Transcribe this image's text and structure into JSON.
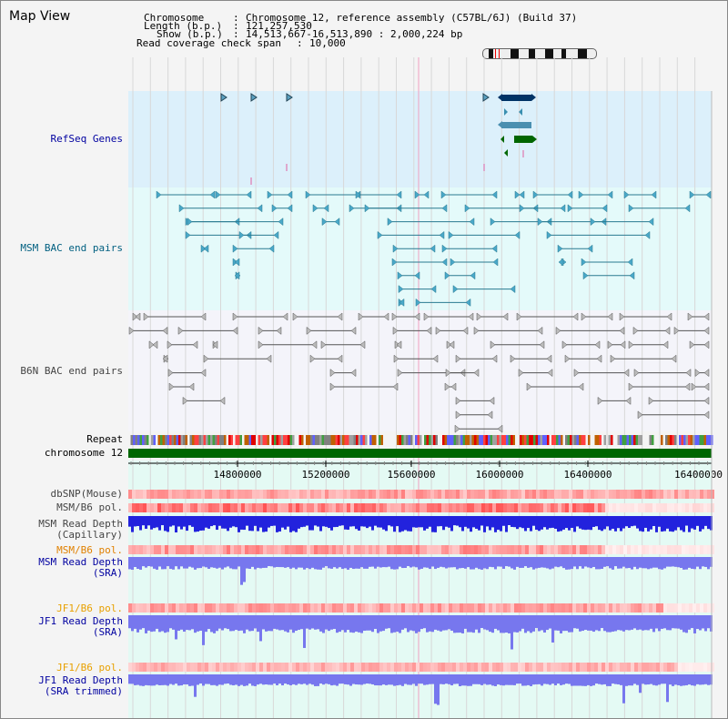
{
  "app": {
    "title": "Map View"
  },
  "header": {
    "chromosome_label": "Chromosome",
    "chromosome_value": "Chromosome 12, reference assembly (C57BL/6J) (Build 37)",
    "length_label": "Length (b.p.)",
    "length_value": "121,257,530",
    "show_label": "Show (b.p.)",
    "show_value": "14,513,667-16,513,890 : 2,000,224 bp",
    "coverage_label": "Read coverage check span",
    "coverage_value": "10,000"
  },
  "tracks": {
    "refseq": "RefSeq Genes",
    "msm_bac": "MSM BAC end pairs",
    "b6n_bac": "B6N BAC end pairs",
    "repeat": "Repeat",
    "chromosome": "chromosome 12",
    "dbsnp": "dbSNP(Mouse)",
    "msm_b6_pol_1": "MSM/B6 pol.",
    "msm_depth_cap": "MSM Read Depth\n(Capillary)",
    "msm_b6_pol_2": "MSM/B6 pol.",
    "msm_depth_sra": "MSM Read Depth\n(SRA)",
    "jf1_b6_pol_1": "JF1/B6 pol.",
    "jf1_depth_sra": "JF1 Read Depth\n(SRA)",
    "jf1_b6_pol_2": "JF1/B6 pol.",
    "jf1_depth_trim": "JF1 Read Depth\n(SRA trimmed)"
  },
  "axis": {
    "ticks": [
      "14800000",
      "15200000",
      "15600000",
      "16000000",
      "16400000"
    ]
  },
  "colors": {
    "refseq_bg": "#dcf0fb",
    "refseq_label": "#0000a0",
    "msm_bac_bg": "#e4fafa",
    "msm_bac_label": "#005f80",
    "msm_bac_feature": "#2a7a90",
    "b6n_bac_bg": "#f4f4fa",
    "b6n_bac_label": "#444444",
    "chromosome_bar": "#006600",
    "depth_blue": "#2222dd",
    "depth_light": "#7777ee",
    "pol_red": "#e82020",
    "msm_pol_label": "#e08000",
    "jf1_pol_label": "#e8a000",
    "depth_label": "#0000a0",
    "gene_dark": "#003366",
    "gene_mid": "#4a8fb0",
    "gene_green": "#006600"
  }
}
